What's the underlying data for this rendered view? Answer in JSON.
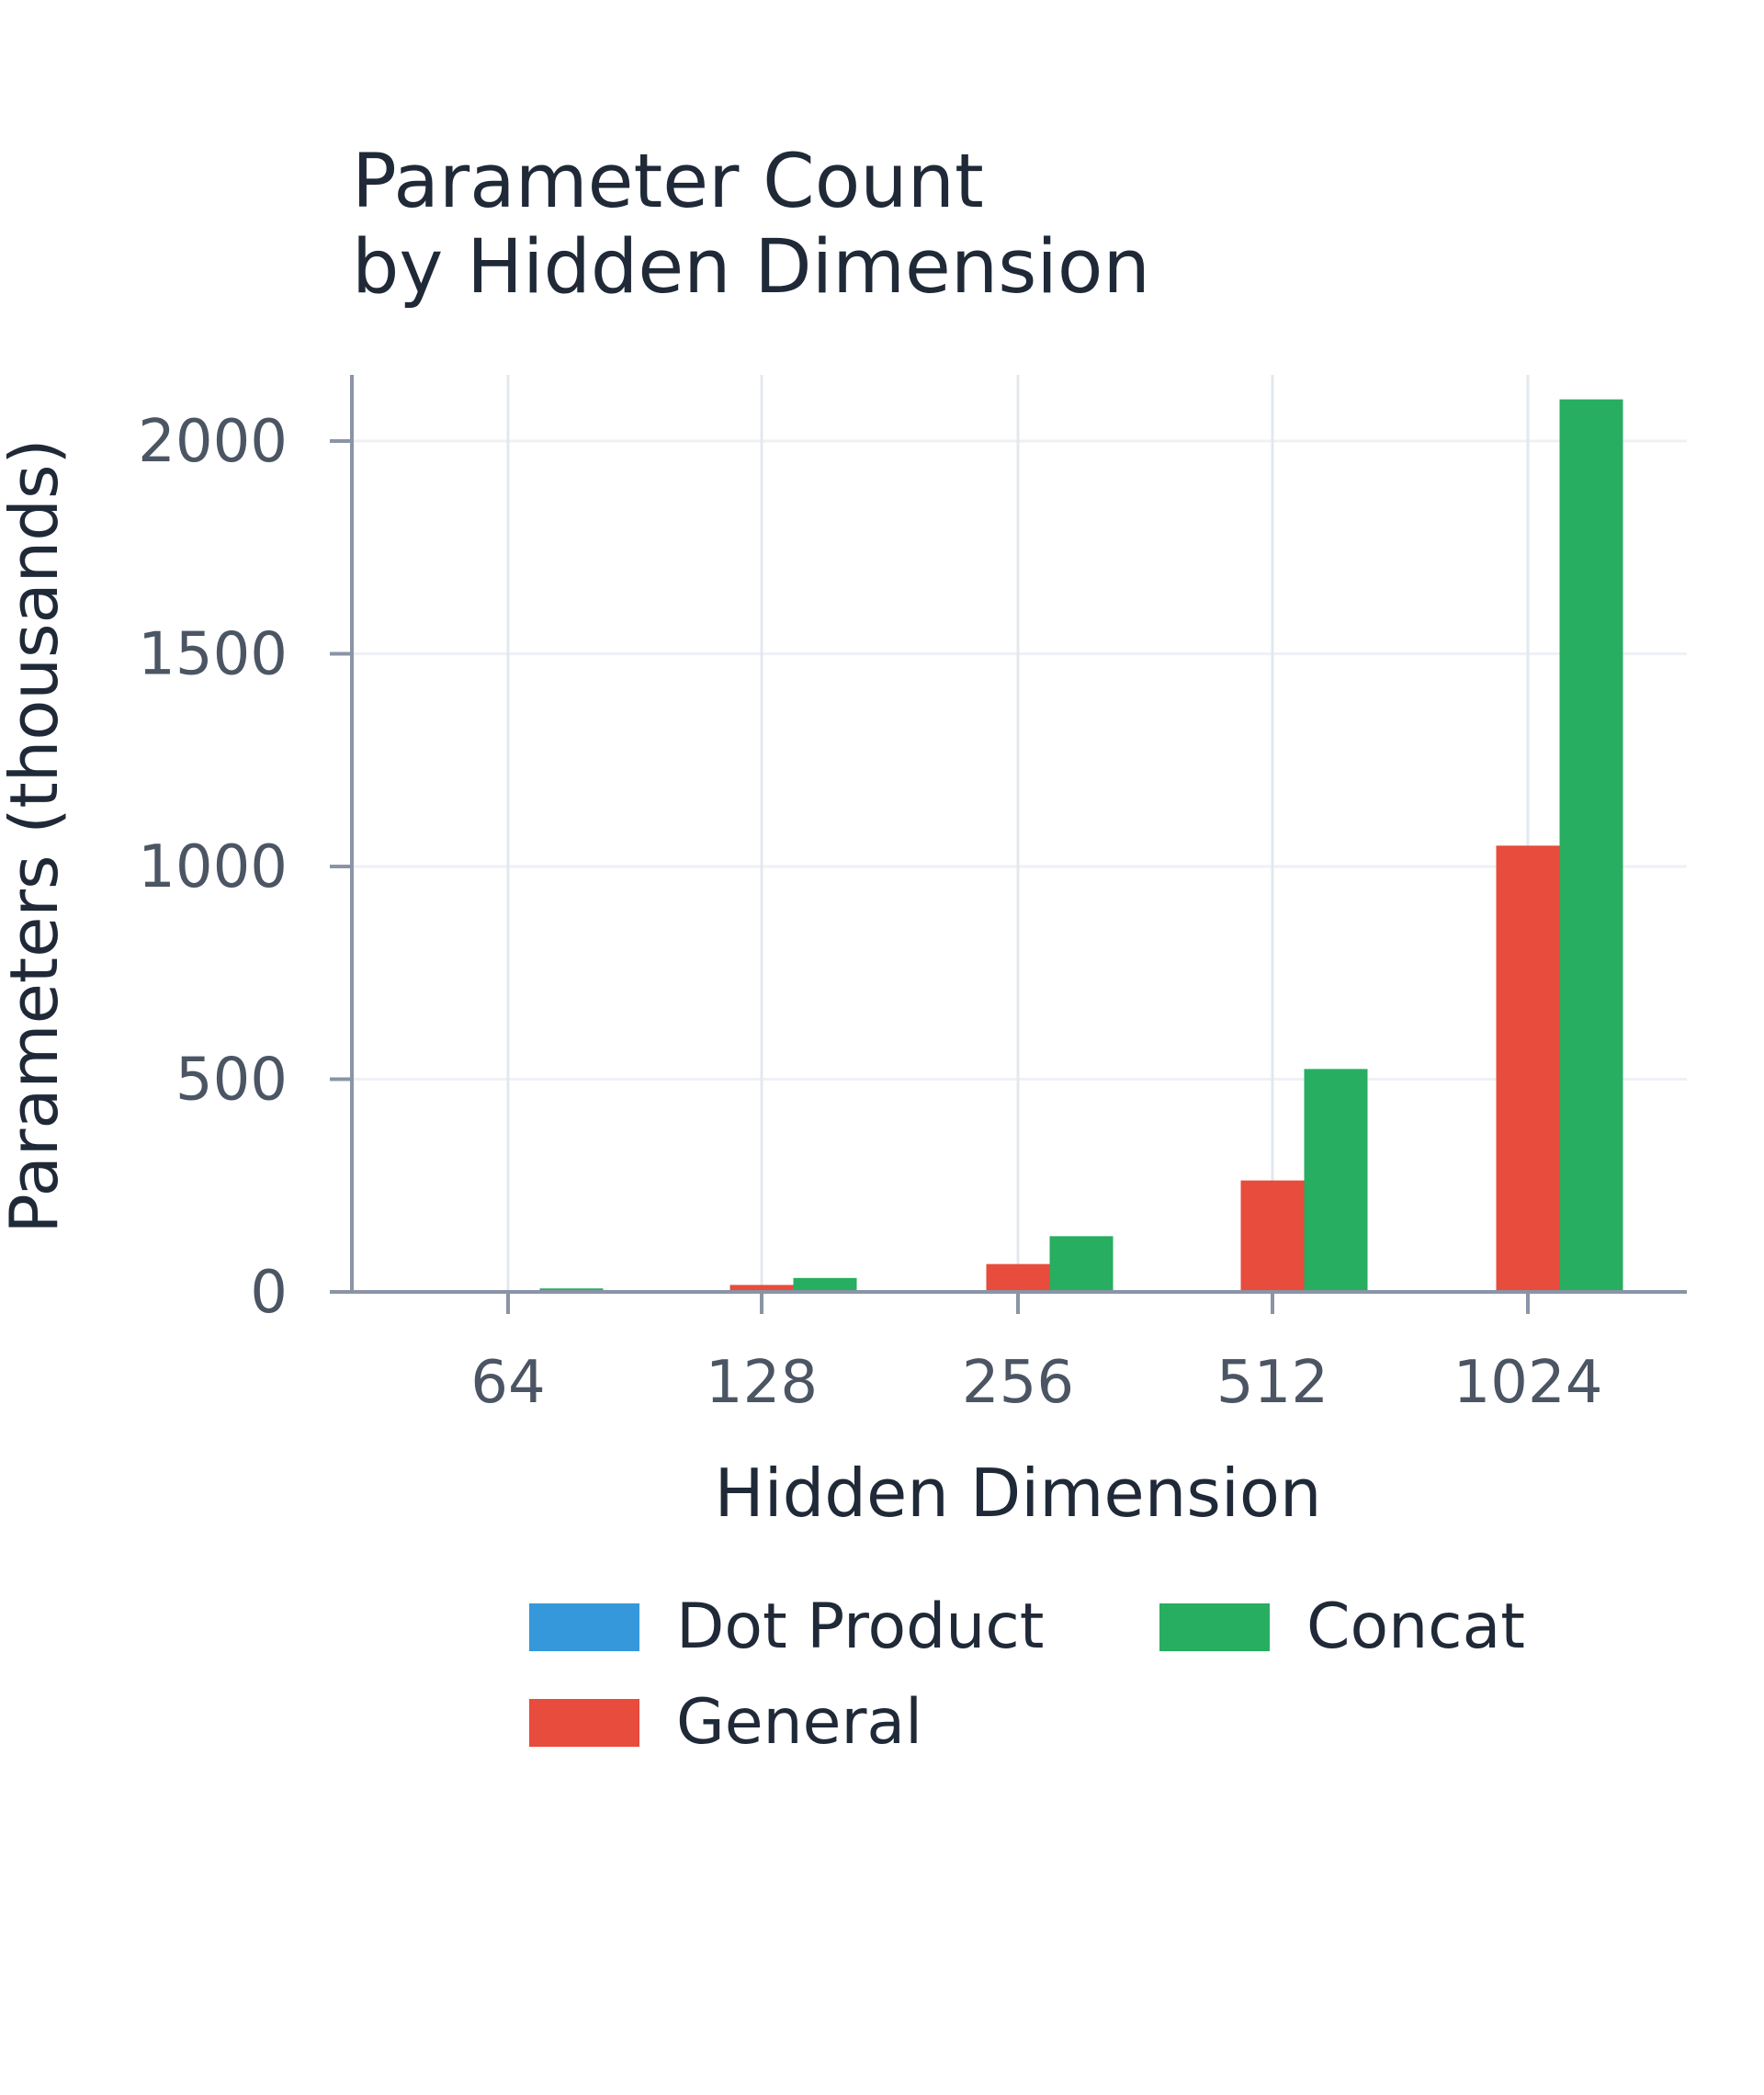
{
  "chart_data": {
    "type": "bar",
    "title_lines": [
      "Parameter Count",
      "by Hidden Dimension"
    ],
    "xlabel": "Hidden Dimension",
    "ylabel": "Parameters (thousands)",
    "categories": [
      "64",
      "128",
      "256",
      "512",
      "1024"
    ],
    "ylim": [
      0,
      2200
    ],
    "yticks": [
      0,
      500,
      1000,
      1500,
      2000
    ],
    "grid": true,
    "legend_position": "bottom",
    "series": [
      {
        "name": "Dot Product",
        "color": "#3498db",
        "values": [
          0,
          0,
          0,
          0,
          0
        ]
      },
      {
        "name": "General",
        "color": "#e74c3c",
        "values": [
          4.1,
          16.4,
          65.5,
          262,
          1049
        ]
      },
      {
        "name": "Concat",
        "color": "#27ae60",
        "values": [
          8.2,
          32.8,
          131,
          524,
          2098
        ]
      }
    ]
  }
}
